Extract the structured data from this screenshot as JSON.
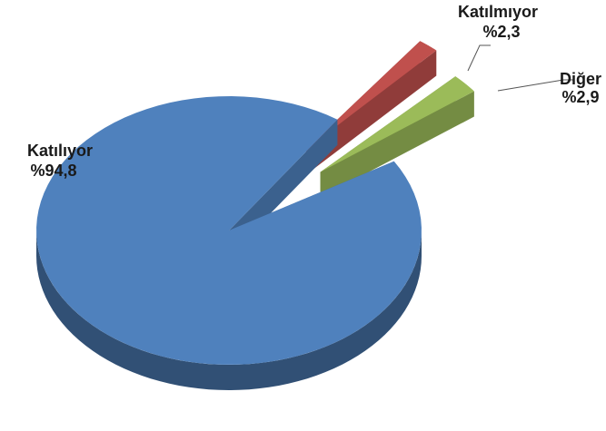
{
  "chart_data": {
    "type": "pie",
    "style": "3d-exploded",
    "slices": [
      {
        "label": "Katılıyor",
        "value_label": "%94,8",
        "value": 94.8,
        "color": "#4f81bd"
      },
      {
        "label": "Katılmıyor",
        "value_label": "%2,3",
        "value": 2.3,
        "color": "#c0504d"
      },
      {
        "label": "Diğer",
        "value_label": "%2,9",
        "value": 2.9,
        "color": "#9bbb59"
      }
    ]
  }
}
